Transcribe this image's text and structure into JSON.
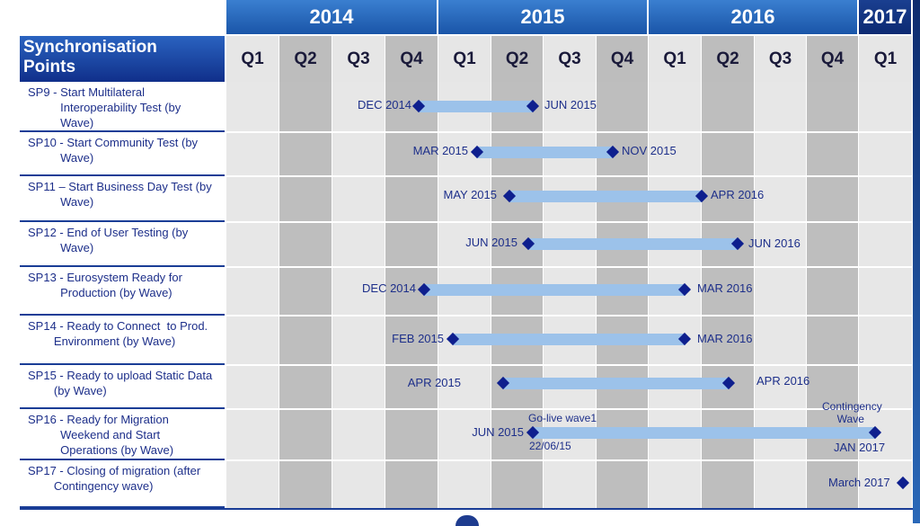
{
  "header": {
    "title": "Synchronisation\nPoints"
  },
  "years": [
    {
      "label": "2014"
    },
    {
      "label": "2015"
    },
    {
      "label": "2016"
    },
    {
      "label": "2017"
    }
  ],
  "quarters": [
    "Q1",
    "Q2",
    "Q3",
    "Q4",
    "Q1",
    "Q2",
    "Q3",
    "Q4",
    "Q1",
    "Q2",
    "Q3",
    "Q4",
    "Q1"
  ],
  "rows": [
    {
      "label": "SP9 - Start Multilateral\n          Interoperability Test (by\n          Wave)",
      "start": "DEC 2014",
      "end": "JUN 2015"
    },
    {
      "label": "SP10 - Start Community Test (by\n          Wave)",
      "start": "MAR 2015",
      "end": "NOV 2015"
    },
    {
      "label": "SP11 – Start Business Day Test (by\n          Wave)",
      "start": "MAY 2015",
      "end": "APR  2016"
    },
    {
      "label": "SP12 - End of User Testing (by\n          Wave)",
      "start": "JUN  2015",
      "end": "JUN 2016"
    },
    {
      "label": "SP13 - Eurosystem Ready for\n          Production (by Wave)",
      "start": "DEC  2014",
      "end": "MAR 2016"
    },
    {
      "label": "SP14 - Ready to Connect  to Prod.\n        Environment (by Wave)",
      "start": "FEB  2015",
      "end": "MAR  2016"
    },
    {
      "label": "SP15 - Ready to upload Static Data\n        (by Wave)",
      "start": "APR  2015",
      "end": "APR  2016"
    },
    {
      "label": "SP16 - Ready for Migration\n          Weekend and Start\n          Operations (by Wave)",
      "start": "JUN  2015",
      "end": "JAN 2017",
      "note_start_top": "Go-live wave1",
      "note_start_bottom": "22/06/15",
      "note_end_top": "Contingency\n     Wave"
    },
    {
      "label": "SP17 - Closing of migration (after\n        Contingency wave)",
      "start": "",
      "end": "March 2017"
    }
  ]
}
